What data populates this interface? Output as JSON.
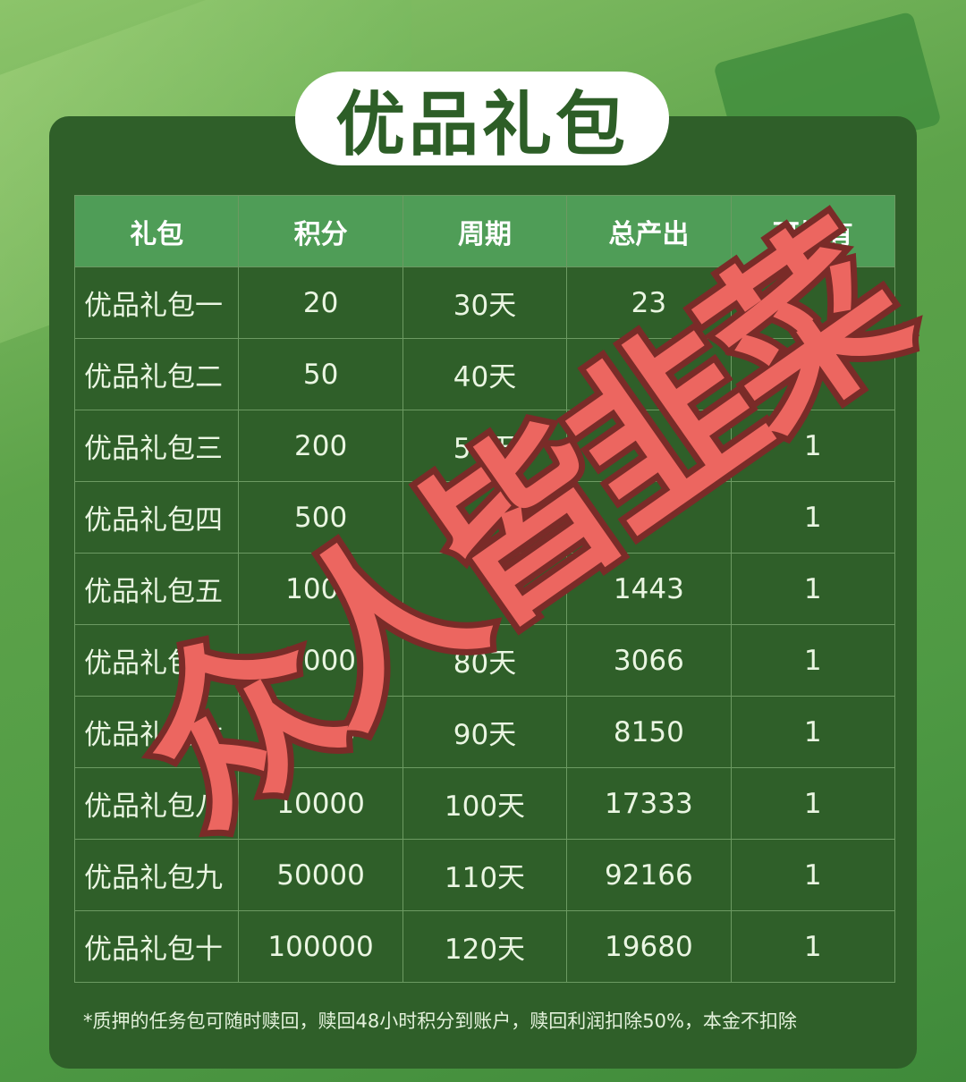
{
  "title": "优品礼包",
  "colors": {
    "card": "#2f5f29",
    "header": "#4f9d57",
    "watermark": "#ec6660"
  },
  "table": {
    "headers": [
      "礼包",
      "积分",
      "周期",
      "总产出",
      "可持有"
    ],
    "rows": [
      [
        "优品礼包一",
        "20",
        "30天",
        "23",
        ""
      ],
      [
        "优品礼包二",
        "50",
        "40天",
        "",
        ""
      ],
      [
        "优品礼包三",
        "200",
        "50天",
        "",
        "1"
      ],
      [
        "优品礼包四",
        "500",
        "",
        "",
        "1"
      ],
      [
        "优品礼包五",
        "1000",
        "",
        "1443",
        "1"
      ],
      [
        "优品礼包六",
        "2000",
        "80天",
        "3066",
        "1"
      ],
      [
        "优品礼包七",
        "5000",
        "90天",
        "8150",
        "1"
      ],
      [
        "优品礼包八",
        "10000",
        "100天",
        "17333",
        "1"
      ],
      [
        "优品礼包九",
        "50000",
        "110天",
        "92166",
        "1"
      ],
      [
        "优品礼包十",
        "100000",
        "120天",
        "19680",
        "1"
      ]
    ]
  },
  "note": "*质押的任务包可随时赎回，赎回48小时积分到账户，赎回利润扣除50%，本金不扣除",
  "watermark": "众人皆韭菜"
}
